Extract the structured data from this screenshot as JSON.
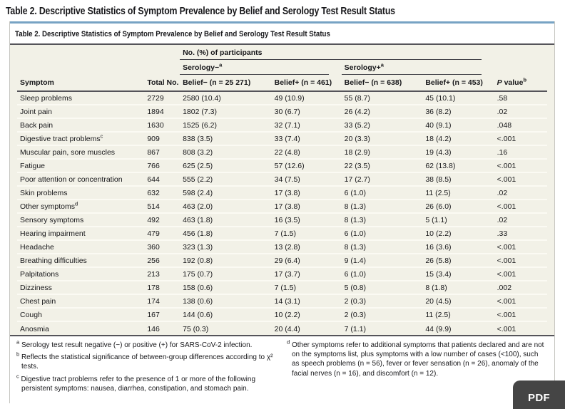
{
  "page": {
    "heading": "Table 2.  Descriptive Statistics of Symptom Prevalence by Belief and Serology Test Result Status"
  },
  "table": {
    "title": "Table 2. Descriptive Statistics of Symptom Prevalence by Belief and Serology Test Result Status",
    "group_header": "No. (%) of participants",
    "serology_neg": "Serology−",
    "serology_neg_sup": "a",
    "serology_pos": "Serology+",
    "serology_pos_sup": "a",
    "columns": {
      "symptom": "Symptom",
      "total": "Total No.",
      "sn_bn": "Belief− (n = 25 271)",
      "sn_bp": "Belief+ (n = 461)",
      "sp_bn": "Belief− (n = 638)",
      "sp_bp": "Belief+ (n = 453)",
      "p_italic": "P",
      "p_rest": " value",
      "p_sup": "b"
    },
    "rows": [
      {
        "symptom": "Sleep problems",
        "sup": "",
        "total": "2729",
        "c1": "2580 (10.4)",
        "c2": "49 (10.9)",
        "c3": "55 (8.7)",
        "c4": "45 (10.1)",
        "p": ".58"
      },
      {
        "symptom": "Joint pain",
        "sup": "",
        "total": "1894",
        "c1": "1802 (7.3)",
        "c2": "30 (6.7)",
        "c3": "26 (4.2)",
        "c4": "36 (8.2)",
        "p": ".02"
      },
      {
        "symptom": "Back pain",
        "sup": "",
        "total": "1630",
        "c1": "1525 (6.2)",
        "c2": "32 (7.1)",
        "c3": "33 (5.2)",
        "c4": "40 (9.1)",
        "p": ".048"
      },
      {
        "symptom": "Digestive tract problems",
        "sup": "c",
        "total": "909",
        "c1": "838 (3.5)",
        "c2": "33 (7.4)",
        "c3": "20 (3.3)",
        "c4": "18 (4.2)",
        "p": "<.001"
      },
      {
        "symptom": "Muscular pain, sore muscles",
        "sup": "",
        "total": "867",
        "c1": "808 (3.2)",
        "c2": "22 (4.8)",
        "c3": "18 (2.9)",
        "c4": "19 (4.3)",
        "p": ".16"
      },
      {
        "symptom": "Fatigue",
        "sup": "",
        "total": "766",
        "c1": "625 (2.5)",
        "c2": "57 (12.6)",
        "c3": "22 (3.5)",
        "c4": "62 (13.8)",
        "p": "<.001"
      },
      {
        "symptom": "Poor attention or concentration",
        "sup": "",
        "total": "644",
        "c1": "555 (2.2)",
        "c2": "34 (7.5)",
        "c3": "17 (2.7)",
        "c4": "38 (8.5)",
        "p": "<.001"
      },
      {
        "symptom": "Skin problems",
        "sup": "",
        "total": "632",
        "c1": "598 (2.4)",
        "c2": "17 (3.8)",
        "c3": "6 (1.0)",
        "c4": "11 (2.5)",
        "p": ".02"
      },
      {
        "symptom": "Other symptoms",
        "sup": "d",
        "total": "514",
        "c1": "463 (2.0)",
        "c2": "17 (3.8)",
        "c3": "8 (1.3)",
        "c4": "26 (6.0)",
        "p": "<.001"
      },
      {
        "symptom": "Sensory symptoms",
        "sup": "",
        "total": "492",
        "c1": "463 (1.8)",
        "c2": "16 (3.5)",
        "c3": "8 (1.3)",
        "c4": "5 (1.1)",
        "p": ".02"
      },
      {
        "symptom": "Hearing impairment",
        "sup": "",
        "total": "479",
        "c1": "456 (1.8)",
        "c2": "7 (1.5)",
        "c3": "6 (1.0)",
        "c4": "10 (2.2)",
        "p": ".33"
      },
      {
        "symptom": "Headache",
        "sup": "",
        "total": "360",
        "c1": "323 (1.3)",
        "c2": "13 (2.8)",
        "c3": "8 (1.3)",
        "c4": "16 (3.6)",
        "p": "<.001"
      },
      {
        "symptom": "Breathing difficulties",
        "sup": "",
        "total": "256",
        "c1": "192 (0.8)",
        "c2": "29 (6.4)",
        "c3": "9 (1.4)",
        "c4": "26 (5.8)",
        "p": "<.001"
      },
      {
        "symptom": "Palpitations",
        "sup": "",
        "total": "213",
        "c1": "175 (0.7)",
        "c2": "17 (3.7)",
        "c3": "6 (1.0)",
        "c4": "15 (3.4)",
        "p": "<.001"
      },
      {
        "symptom": "Dizziness",
        "sup": "",
        "total": "178",
        "c1": "158 (0.6)",
        "c2": "7 (1.5)",
        "c3": "5 (0.8)",
        "c4": "8 (1.8)",
        "p": ".002"
      },
      {
        "symptom": "Chest pain",
        "sup": "",
        "total": "174",
        "c1": "138 (0.6)",
        "c2": "14 (3.1)",
        "c3": "2 (0.3)",
        "c4": "20 (4.5)",
        "p": "<.001"
      },
      {
        "symptom": "Cough",
        "sup": "",
        "total": "167",
        "c1": "144 (0.6)",
        "c2": "10 (2.2)",
        "c3": "2 (0.3)",
        "c4": "11 (2.5)",
        "p": "<.001"
      },
      {
        "symptom": "Anosmia",
        "sup": "",
        "total": "146",
        "c1": "75 (0.3)",
        "c2": "20 (4.4)",
        "c3": "7 (1.1)",
        "c4": "44 (9.9)",
        "p": "<.001"
      }
    ]
  },
  "footnotes": {
    "items": [
      {
        "marker": "a",
        "text": "Serology test result negative (−) or positive (+) for SARS-CoV-2 infection."
      },
      {
        "marker": "b",
        "text": "Reflects the statistical significance of between-group differences according to χ² tests."
      },
      {
        "marker": "c",
        "text": "Digestive tract problems refer to the presence of 1 or more of the following persistent symptoms: nausea, diarrhea, constipation, and stomach pain."
      },
      {
        "marker": "d",
        "text": "Other symptoms refer to additional symptoms that patients declared and are not on the symptoms list, plus symptoms with a low number of cases (<100), such as speech problems (n = 56), fever or fever sensation (n = 26), anomaly of the facial nerves (n = 16), and discomfort (n = 12)."
      }
    ]
  },
  "pdf_button": {
    "label": "PDF"
  },
  "colors": {
    "accent_blue": "#77a3c4",
    "rule_dark": "#55545a",
    "table_bg": "#f2f1e7",
    "pdf_bg": "#454545"
  }
}
